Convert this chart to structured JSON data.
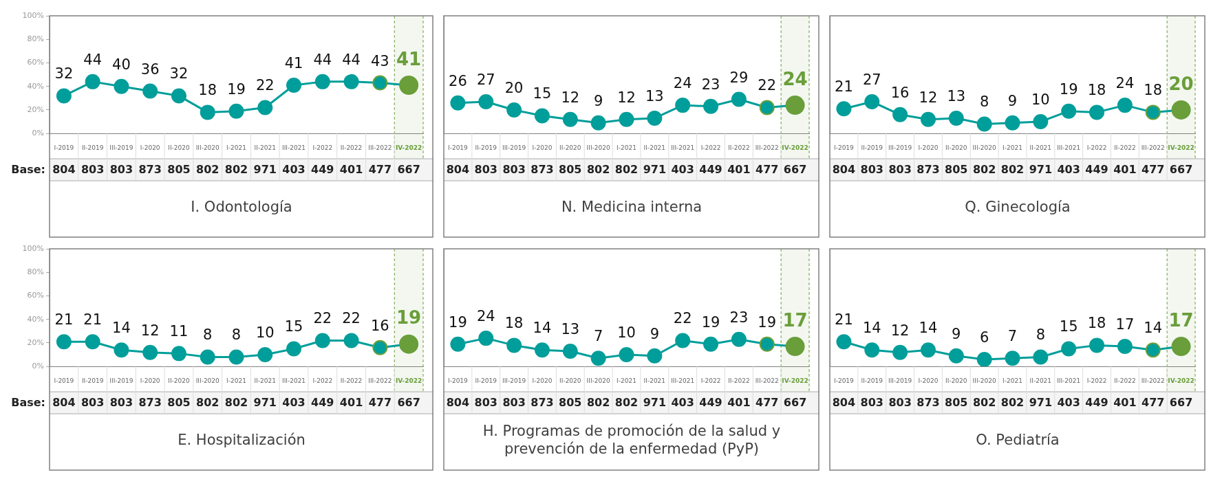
{
  "chart_data": [
    {
      "type": "line",
      "title": "I. Odontología",
      "categories": [
        "I-2019",
        "II-2019",
        "III-2019",
        "I-2020",
        "II-2020",
        "III-2020",
        "I-2021",
        "II-2021",
        "III-2021",
        "I-2022",
        "II-2022",
        "III-2022",
        "IV-2022"
      ],
      "series": [
        {
          "color": "#009e9a",
          "values": [
            32,
            44,
            40,
            36,
            32,
            18,
            19,
            22,
            41,
            44,
            44,
            43,
            41
          ],
          "colors": [
            "#009e9a",
            "#009e9a",
            "#009e9a",
            "#009e9a",
            "#009e9a",
            "#009e9a",
            "#009e9a",
            "#009e9a",
            "#009e9a",
            "#009e9a",
            "#009e9a",
            "#009e9a",
            "#6a9e3a"
          ]
        }
      ],
      "data_labels": true,
      "marker": "circle",
      "ylim": [
        0,
        100
      ],
      "yticks": [
        {
          "value": 0,
          "label": "0%"
        },
        {
          "value": 20,
          "label": "20%"
        },
        {
          "value": 40,
          "label": "40%"
        },
        {
          "value": 60,
          "label": "60%"
        },
        {
          "value": 80,
          "label": "80%"
        },
        {
          "value": 100,
          "label": "100%"
        }
      ],
      "bands": [
        {
          "axis": "x",
          "from": "IV-2022",
          "to": "IV-2022",
          "color": "#6a9e3a"
        }
      ],
      "annotations": [
        "Base:",
        "804",
        "803",
        "803",
        "873",
        "805",
        "802",
        "802",
        "971",
        "403",
        "449",
        "401",
        "477",
        "667"
      ]
    },
    {
      "type": "line",
      "title": "N. Medicina interna",
      "categories": [
        "I-2019",
        "II-2019",
        "III-2019",
        "I-2020",
        "II-2020",
        "III-2020",
        "I-2021",
        "II-2021",
        "III-2021",
        "I-2022",
        "II-2022",
        "III-2022",
        "IV-2022"
      ],
      "series": [
        {
          "color": "#009e9a",
          "values": [
            26,
            27,
            20,
            15,
            12,
            9,
            12,
            13,
            24,
            23,
            29,
            22,
            24
          ],
          "colors": [
            "#009e9a",
            "#009e9a",
            "#009e9a",
            "#009e9a",
            "#009e9a",
            "#009e9a",
            "#009e9a",
            "#009e9a",
            "#009e9a",
            "#009e9a",
            "#009e9a",
            "#009e9a",
            "#6a9e3a"
          ]
        }
      ],
      "data_labels": true,
      "marker": "circle",
      "ylim": [
        0,
        100
      ],
      "tick_labels": "x",
      "bands": [
        {
          "axis": "x",
          "from": "IV-2022",
          "to": "IV-2022",
          "color": "#6a9e3a"
        }
      ],
      "annotations": [
        "804",
        "803",
        "803",
        "873",
        "805",
        "802",
        "802",
        "971",
        "403",
        "449",
        "401",
        "477",
        "667"
      ]
    },
    {
      "type": "line",
      "title": "Q. Ginecología",
      "categories": [
        "I-2019",
        "II-2019",
        "III-2019",
        "I-2020",
        "II-2020",
        "III-2020",
        "I-2021",
        "II-2021",
        "III-2021",
        "I-2022",
        "II-2022",
        "III-2022",
        "IV-2022"
      ],
      "series": [
        {
          "color": "#009e9a",
          "values": [
            21,
            27,
            16,
            12,
            13,
            8,
            9,
            10,
            19,
            18,
            24,
            18,
            20
          ],
          "colors": [
            "#009e9a",
            "#009e9a",
            "#009e9a",
            "#009e9a",
            "#009e9a",
            "#009e9a",
            "#009e9a",
            "#009e9a",
            "#009e9a",
            "#009e9a",
            "#009e9a",
            "#009e9a",
            "#6a9e3a"
          ]
        }
      ],
      "data_labels": true,
      "marker": "circle",
      "ylim": [
        0,
        100
      ],
      "tick_labels": "x",
      "bands": [
        {
          "axis": "x",
          "from": "IV-2022",
          "to": "IV-2022",
          "color": "#6a9e3a"
        }
      ],
      "annotations": [
        "804",
        "803",
        "803",
        "873",
        "805",
        "802",
        "802",
        "971",
        "403",
        "449",
        "401",
        "477",
        "667"
      ]
    },
    {
      "type": "line",
      "title": "E. Hospitalización",
      "categories": [
        "I-2019",
        "II-2019",
        "III-2019",
        "I-2020",
        "II-2020",
        "III-2020",
        "I-2021",
        "II-2021",
        "III-2021",
        "I-2022",
        "II-2022",
        "III-2022",
        "IV-2022"
      ],
      "series": [
        {
          "color": "#009e9a",
          "values": [
            21,
            21,
            14,
            12,
            11,
            8,
            8,
            10,
            15,
            22,
            22,
            16,
            19
          ],
          "colors": [
            "#009e9a",
            "#009e9a",
            "#009e9a",
            "#009e9a",
            "#009e9a",
            "#009e9a",
            "#009e9a",
            "#009e9a",
            "#009e9a",
            "#009e9a",
            "#009e9a",
            "#009e9a",
            "#6a9e3a"
          ]
        }
      ],
      "data_labels": true,
      "marker": "circle",
      "ylim": [
        0,
        100
      ],
      "yticks": [
        {
          "value": 0,
          "label": "0%"
        },
        {
          "value": 20,
          "label": "20%"
        },
        {
          "value": 40,
          "label": "40%"
        },
        {
          "value": 60,
          "label": "60%"
        },
        {
          "value": 80,
          "label": "80%"
        },
        {
          "value": 100,
          "label": "100%"
        }
      ],
      "bands": [
        {
          "axis": "x",
          "from": "IV-2022",
          "to": "IV-2022",
          "color": "#6a9e3a"
        }
      ],
      "annotations": [
        "Base:",
        "804",
        "803",
        "803",
        "873",
        "805",
        "802",
        "802",
        "971",
        "403",
        "449",
        "401",
        "477",
        "667"
      ]
    },
    {
      "type": "line",
      "title": "H. Programas de promoción de la salud y prevención de la enfermedad (PyP)",
      "categories": [
        "I-2019",
        "II-2019",
        "III-2019",
        "I-2020",
        "II-2020",
        "III-2020",
        "I-2021",
        "II-2021",
        "III-2021",
        "I-2022",
        "II-2022",
        "III-2022",
        "IV-2022"
      ],
      "series": [
        {
          "color": "#009e9a",
          "values": [
            19,
            24,
            18,
            14,
            13,
            7,
            10,
            9,
            22,
            19,
            23,
            19,
            17
          ],
          "colors": [
            "#009e9a",
            "#009e9a",
            "#009e9a",
            "#009e9a",
            "#009e9a",
            "#009e9a",
            "#009e9a",
            "#009e9a",
            "#009e9a",
            "#009e9a",
            "#009e9a",
            "#009e9a",
            "#6a9e3a"
          ]
        }
      ],
      "data_labels": true,
      "marker": "circle",
      "ylim": [
        0,
        100
      ],
      "tick_labels": "x",
      "bands": [
        {
          "axis": "x",
          "from": "IV-2022",
          "to": "IV-2022",
          "color": "#6a9e3a"
        }
      ],
      "annotations": [
        "804",
        "803",
        "803",
        "873",
        "805",
        "802",
        "802",
        "971",
        "403",
        "449",
        "401",
        "477",
        "667"
      ]
    },
    {
      "type": "line",
      "title": "O. Pediatría",
      "categories": [
        "I-2019",
        "II-2019",
        "III-2019",
        "I-2020",
        "II-2020",
        "III-2020",
        "I-2021",
        "II-2021",
        "III-2021",
        "I-2022",
        "II-2022",
        "III-2022",
        "IV-2022"
      ],
      "series": [
        {
          "color": "#009e9a",
          "values": [
            21,
            14,
            12,
            14,
            9,
            6,
            7,
            8,
            15,
            18,
            17,
            14,
            17
          ],
          "colors": [
            "#009e9a",
            "#009e9a",
            "#009e9a",
            "#009e9a",
            "#009e9a",
            "#009e9a",
            "#009e9a",
            "#009e9a",
            "#009e9a",
            "#009e9a",
            "#009e9a",
            "#009e9a",
            "#6a9e3a"
          ]
        }
      ],
      "data_labels": true,
      "marker": "circle",
      "ylim": [
        0,
        100
      ],
      "tick_labels": "x",
      "bands": [
        {
          "axis": "x",
          "from": "IV-2022",
          "to": "IV-2022",
          "color": "#6a9e3a"
        }
      ],
      "annotations": [
        "804",
        "803",
        "803",
        "873",
        "805",
        "802",
        "802",
        "971",
        "403",
        "449",
        "401",
        "477",
        "667"
      ]
    }
  ]
}
